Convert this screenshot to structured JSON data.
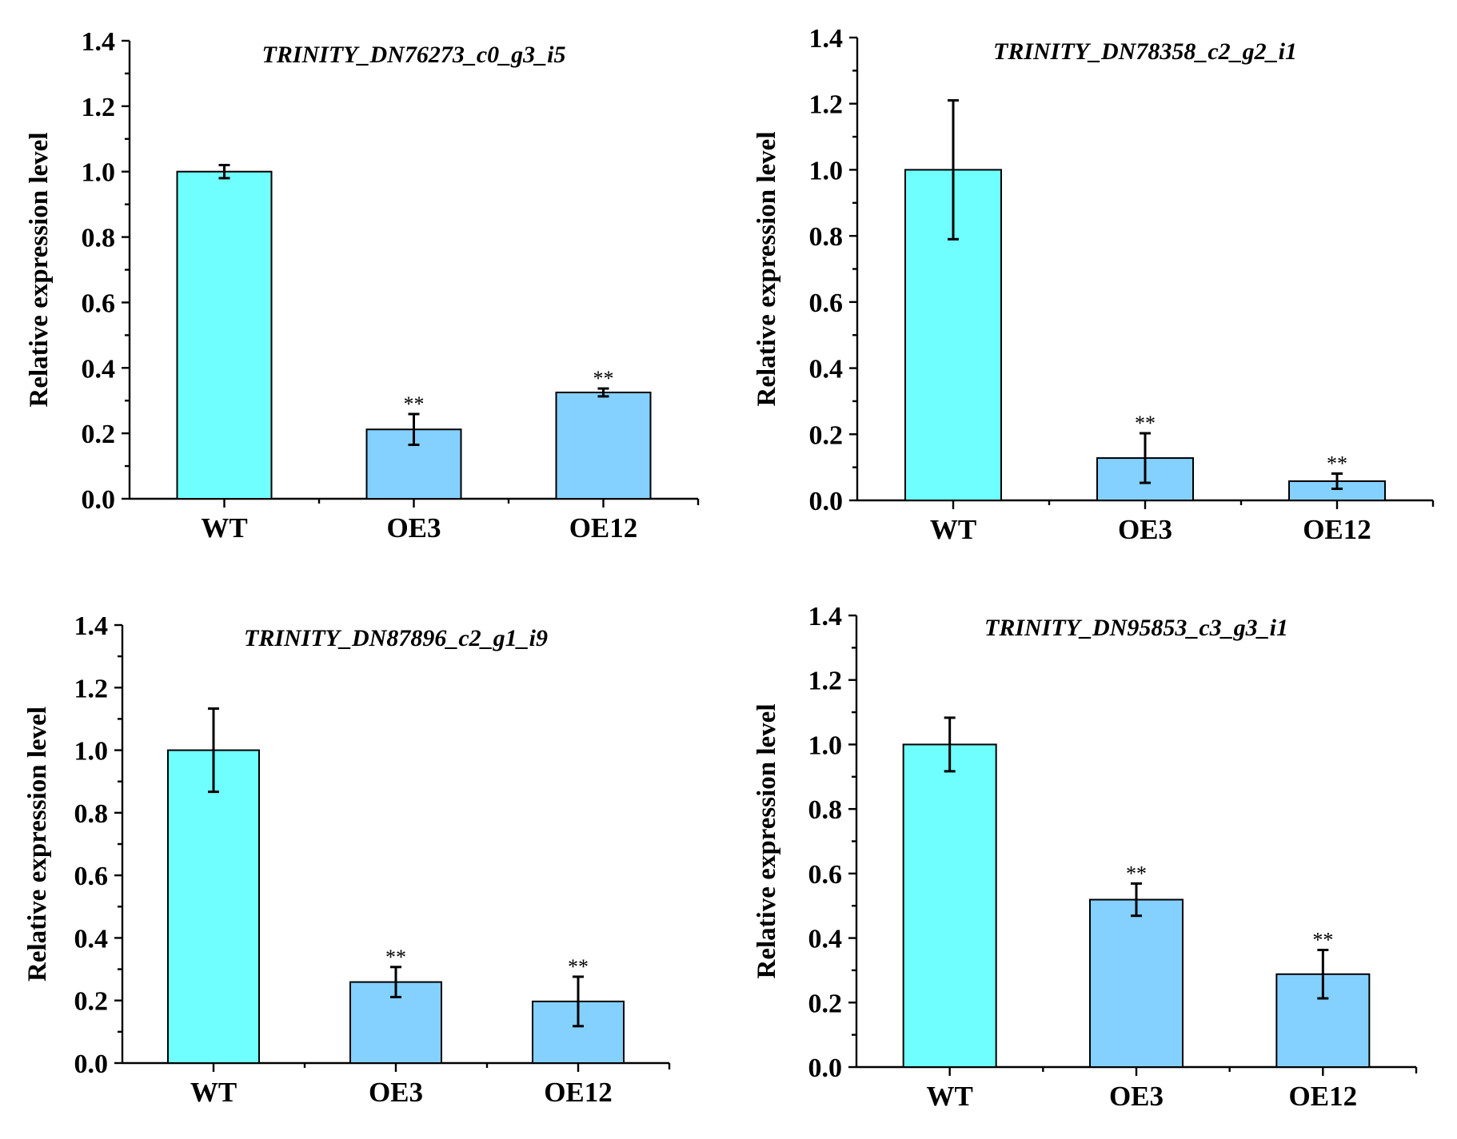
{
  "figure": {
    "panel_count": 4
  },
  "chart_data": [
    {
      "type": "bar",
      "title": "TRINITY_DN76273_c0_g3_i5",
      "xlabel": "",
      "ylabel": "Relative expression level",
      "categories": [
        "WT",
        "OE3",
        "OE12"
      ],
      "values": [
        1.0,
        0.212,
        0.325
      ],
      "errors": [
        0.02,
        0.047,
        0.012
      ],
      "significance": [
        "",
        "**",
        "**"
      ],
      "colors": [
        "#70FFFF",
        "#84D0FF",
        "#84D0FF"
      ],
      "ylim": [
        0,
        1.4
      ],
      "yticks": [
        "0.0",
        "0.2",
        "0.4",
        "0.6",
        "0.8",
        "1.0",
        "1.2",
        "1.4"
      ],
      "grid": false,
      "legend": "none"
    },
    {
      "type": "bar",
      "title": "TRINITY_DN78358_c2_g2_i1",
      "xlabel": "",
      "ylabel": "Relative expression level",
      "categories": [
        "WT",
        "OE3",
        "OE12"
      ],
      "values": [
        1.0,
        0.128,
        0.058
      ],
      "errors": [
        0.21,
        0.075,
        0.023
      ],
      "significance": [
        "",
        "**",
        "**"
      ],
      "colors": [
        "#70FFFF",
        "#84D0FF",
        "#84D0FF"
      ],
      "ylim": [
        0,
        1.4
      ],
      "yticks": [
        "0.0",
        "0.2",
        "0.4",
        "0.6",
        "0.8",
        "1.0",
        "1.2",
        "1.4"
      ],
      "grid": false,
      "legend": "none"
    },
    {
      "type": "bar",
      "title": "TRINITY_DN87896_c2_g1_i9",
      "xlabel": "",
      "ylabel": "Relative expression level",
      "categories": [
        "WT",
        "OE3",
        "OE12"
      ],
      "values": [
        1.0,
        0.259,
        0.197
      ],
      "errors": [
        0.133,
        0.048,
        0.079
      ],
      "significance": [
        "",
        "**",
        "**"
      ],
      "colors": [
        "#70FFFF",
        "#84D0FF",
        "#84D0FF"
      ],
      "ylim": [
        0,
        1.4
      ],
      "yticks": [
        "0.0",
        "0.2",
        "0.4",
        "0.6",
        "0.8",
        "1.0",
        "1.2",
        "1.4"
      ],
      "grid": false,
      "legend": "none"
    },
    {
      "type": "bar",
      "title": "TRINITY_DN95853_c3_g3_i1",
      "xlabel": "",
      "ylabel": "Relative expression level",
      "categories": [
        "WT",
        "OE3",
        "OE12"
      ],
      "values": [
        1.0,
        0.519,
        0.288
      ],
      "errors": [
        0.083,
        0.05,
        0.075
      ],
      "significance": [
        "",
        "**",
        "**"
      ],
      "colors": [
        "#70FFFF",
        "#84D0FF",
        "#84D0FF"
      ],
      "ylim": [
        0,
        1.4
      ],
      "yticks": [
        "0.0",
        "0.2",
        "0.4",
        "0.6",
        "0.8",
        "1.0",
        "1.2",
        "1.4"
      ],
      "grid": false,
      "legend": "none"
    }
  ]
}
